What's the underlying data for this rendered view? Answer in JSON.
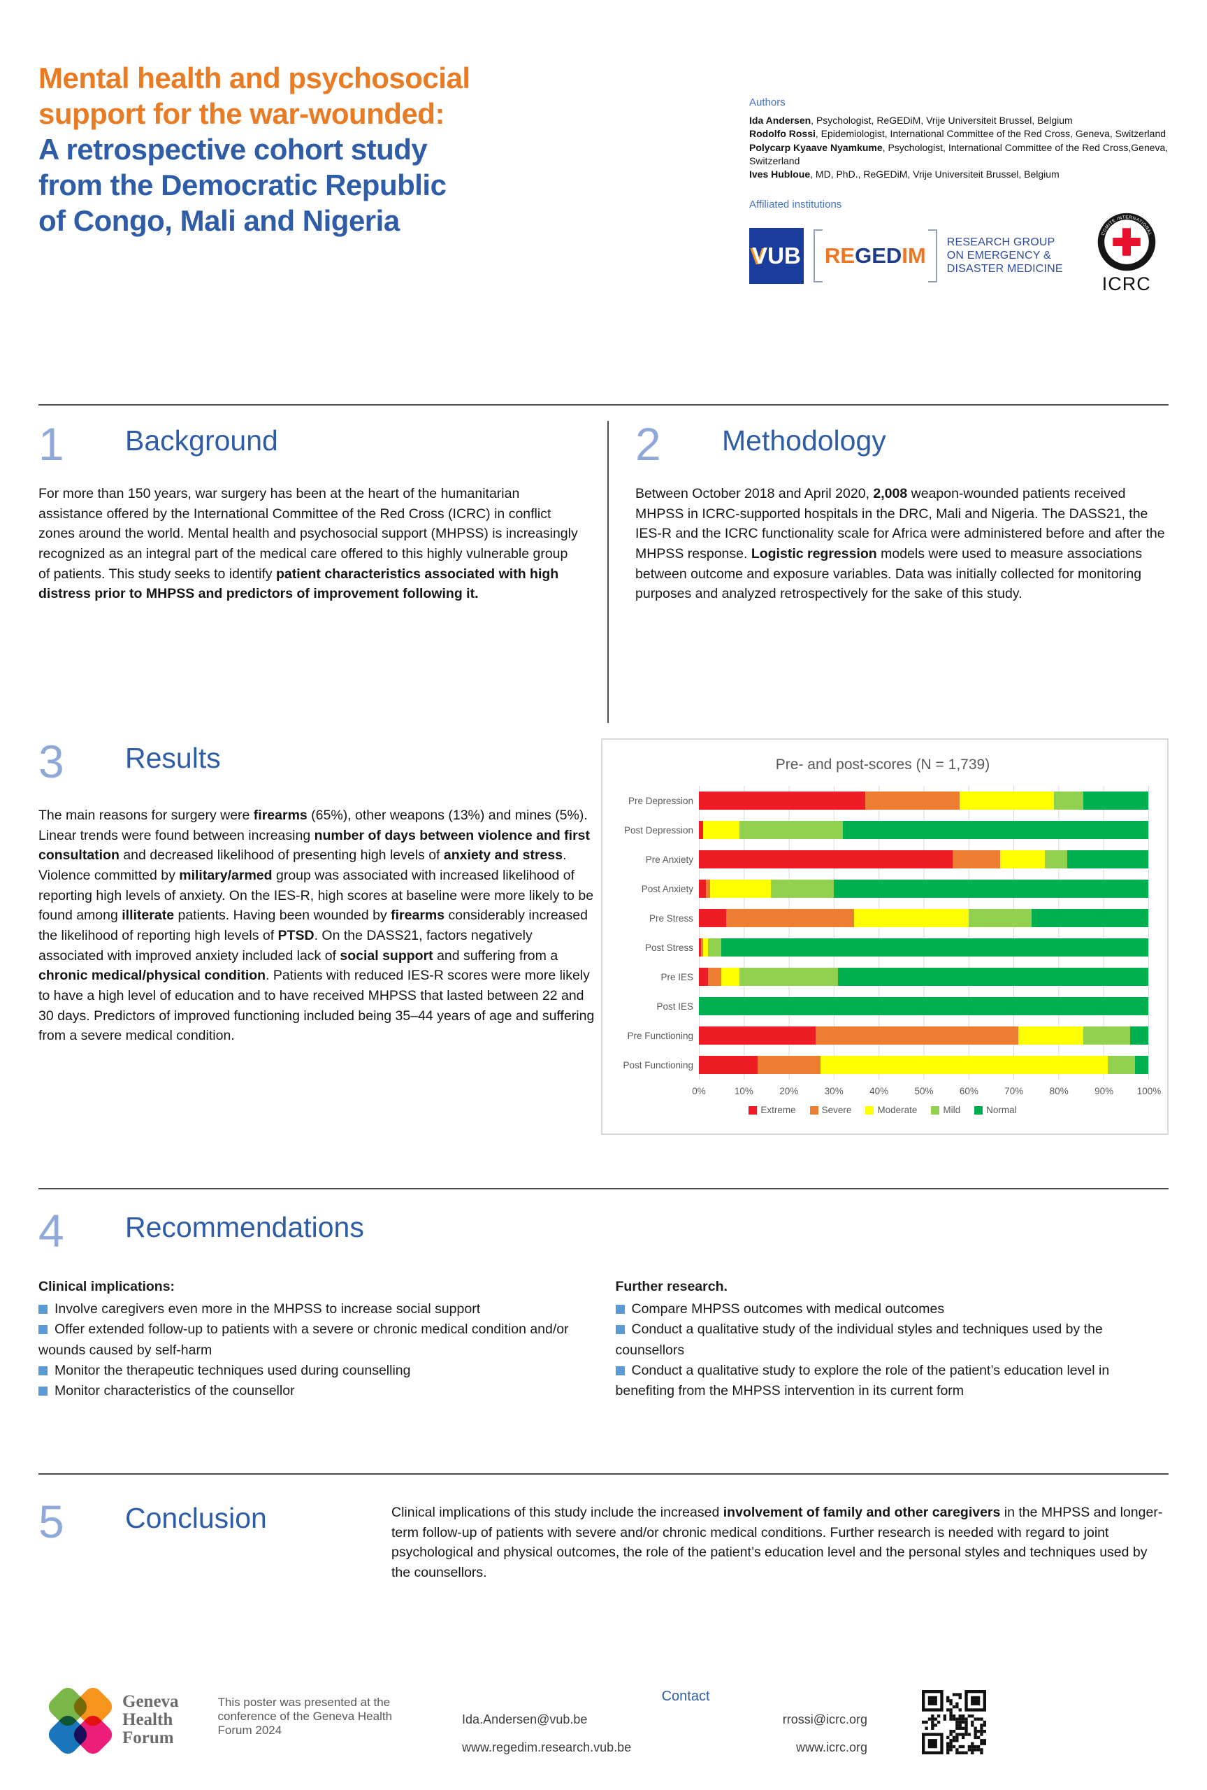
{
  "poster": {
    "title_orange": [
      "Mental health and psychosocial",
      "support for the war-wounded:"
    ],
    "title_blue": [
      "A retrospective cohort study",
      "from the Democratic Republic",
      "of Congo, Mali and Nigeria"
    ]
  },
  "authors": {
    "label": "Authors",
    "list": [
      {
        "name": "Ida Andersen",
        "rest": ", Psychologist, ReGEDiM, Vrije Universiteit Brussel, Belgium"
      },
      {
        "name": "Rodolfo Rossi",
        "rest": ", Epidemiologist, International Committee of the Red Cross, Geneva, Switzerland"
      },
      {
        "name": "Polycarp Kyaave Nyamkume",
        "rest": ", Psychologist, International Committee of the Red Cross,Geneva, Switzerland"
      },
      {
        "name": "Ives Hubloue",
        "rest": ", MD, PhD., ReGEDiM, Vrije Universiteit Brussel, Belgium"
      }
    ]
  },
  "affiliations": {
    "label": "Affiliated institutions",
    "vub_v": "V",
    "vub_ub": "UB",
    "regedim_part1": "RE",
    "regedim_part2": "GED",
    "regedim_part3": "IM",
    "research_group": [
      "RESEARCH GROUP",
      "ON EMERGENCY &",
      "DISASTER MEDICINE"
    ],
    "icrc_ring_top": "COMITE INTERNATIONAL",
    "icrc_ring_bottom": "GENEVE",
    "icrc_wordmark": "ICRC"
  },
  "sections": {
    "background": {
      "number": "1",
      "title": "Background",
      "body": [
        {
          "t": "For more than 150 years, war surgery has been at the heart of the humanitarian assistance offered by the International Committee of the Red Cross (ICRC) in conflict zones around the world. Mental health and psychosocial support (MHPSS) is increasingly recognized as an integral part of the medical care offered to this highly vulnerable group of patients. This study seeks to identify "
        },
        {
          "t": "patient characteristics associated with high distress prior to MHPSS and predictors of improvement following it.",
          "b": true
        }
      ]
    },
    "methodology": {
      "number": "2",
      "title": "Methodology",
      "body": [
        {
          "t": "Between October 2018 and April 2020, "
        },
        {
          "t": "2,008",
          "b": true
        },
        {
          "t": " weapon-wounded patients received MHPSS in ICRC-supported hospitals in the DRC, Mali and Nigeria. The DASS21, the IES-R and the ICRC functionality scale for Africa were administered before and after the MHPSS response. "
        },
        {
          "t": "Logistic regression",
          "b": true
        },
        {
          "t": " models were used to measure associations between outcome and exposure variables. Data was initially collected for monitoring purposes and analyzed retrospectively for the sake of this study."
        }
      ]
    },
    "results": {
      "number": "3",
      "title": "Results",
      "body": [
        {
          "t": "The main reasons for surgery were "
        },
        {
          "t": "firearms",
          "b": true
        },
        {
          "t": " (65%), other weapons (13%) and mines (5%). Linear trends were found between increasing "
        },
        {
          "t": "number of days between violence and first consultation",
          "b": true
        },
        {
          "t": " and decreased likelihood of presenting high levels of "
        },
        {
          "t": "anxiety and stress",
          "b": true
        },
        {
          "t": ". Violence committed by "
        },
        {
          "t": "military/armed",
          "b": true
        },
        {
          "t": " group was associated with increased likelihood of reporting high levels of anxiety. On the IES-R, high scores at baseline were more likely to be found among "
        },
        {
          "t": "illiterate",
          "b": true
        },
        {
          "t": " patients. Having been wounded by "
        },
        {
          "t": "firearms",
          "b": true
        },
        {
          "t": " considerably increased the likelihood of reporting high levels of "
        },
        {
          "t": "PTSD",
          "b": true
        },
        {
          "t": ". On the DASS21, factors negatively associated with improved anxiety included lack of "
        },
        {
          "t": "social support",
          "b": true
        },
        {
          "t": " and suffering from a "
        },
        {
          "t": "chronic medical/physical condition",
          "b": true
        },
        {
          "t": ". Patients with reduced IES-R scores were more likely to have a high level of education and to have received MHPSS that lasted between 22 and 30 days. Predictors of improved functioning included being 35–44 years of age and suffering from a severe medical condition."
        }
      ]
    },
    "recommendations": {
      "number": "4",
      "title": "Recommendations",
      "clinical": {
        "heading": "Clinical implications:",
        "items": [
          "Involve caregivers even more in the MHPSS to increase social support",
          "Offer extended follow-up to patients with a severe or chronic medical condition and/or wounds caused by self-harm",
          "Monitor the therapeutic techniques used during counselling",
          "Monitor characteristics of the counsellor"
        ]
      },
      "further": {
        "heading": "Further research.",
        "items": [
          "Compare MHPSS outcomes with medical outcomes",
          "Conduct a qualitative study of the individual styles and techniques used by the counsellors",
          "Conduct a qualitative study to explore the role of the patient’s education level in benefiting from the MHPSS intervention in its current form"
        ]
      }
    },
    "conclusion": {
      "number": "5",
      "title": "Conclusion",
      "body": [
        {
          "t": "Clinical implications of this study include the increased "
        },
        {
          "t": "involvement of family and other caregivers",
          "b": true
        },
        {
          "t": " in the MHPSS and longer-term follow-up of patients with severe and/or chronic medical conditions. Further research is needed with regard to joint psychological and physical outcomes, the role of the patient’s education level and the personal styles and techniques used by the counsellors."
        }
      ]
    }
  },
  "chart_data": {
    "type": "bar",
    "stacked": true,
    "orientation": "horizontal",
    "title": "Pre- and post-scores (N = 1,739)",
    "categories": [
      "Pre Depression",
      "Post Depression",
      "Pre Anxiety",
      "Post Anxiety",
      "Pre Stress",
      "Post Stress",
      "Pre IES",
      "Post IES",
      "Pre Functioning",
      "Post Functioning"
    ],
    "legend": [
      "Extreme",
      "Severe",
      "Moderate",
      "Mild",
      "Normal"
    ],
    "colors": [
      "#EE1C25",
      "#ED7D31",
      "#FFFF00",
      "#92D050",
      "#00B050"
    ],
    "series": [
      {
        "name": "Extreme",
        "values": [
          37,
          1,
          56.5,
          1.5,
          6,
          0.5,
          2,
          0,
          26,
          13
        ]
      },
      {
        "name": "Severe",
        "values": [
          21,
          0,
          10.5,
          1,
          28.5,
          0.5,
          3,
          0,
          45,
          14
        ]
      },
      {
        "name": "Moderate",
        "values": [
          21,
          8,
          10,
          13.5,
          25.5,
          1,
          4,
          0,
          14.5,
          64
        ]
      },
      {
        "name": "Mild",
        "values": [
          6.5,
          23,
          5,
          14,
          14,
          3,
          22,
          0,
          10.5,
          6
        ]
      },
      {
        "name": "Normal",
        "values": [
          14.5,
          68,
          18,
          70,
          26,
          95,
          69,
          100,
          4,
          3
        ]
      }
    ],
    "x_ticks": [
      "0%",
      "10%",
      "20%",
      "30%",
      "40%",
      "50%",
      "60%",
      "70%",
      "80%",
      "90%",
      "100%"
    ],
    "xlim": [
      0,
      100
    ],
    "grid": true,
    "legend_position": "bottom"
  },
  "footer": {
    "ghf_wordmark": [
      "Geneva",
      "Health",
      "Forum"
    ],
    "presented": [
      "This poster was presented at the",
      "conference of the Geneva Health",
      "Forum 2024"
    ],
    "contact_label": "Contact",
    "contact_left": [
      "Ida.Andersen@vub.be",
      "www.regedim.research.vub.be"
    ],
    "contact_right": [
      "rrossi@icrc.org",
      "www.icrc.org"
    ]
  },
  "colors": {
    "title_orange": "#E87B23",
    "title_blue": "#2E5CA6",
    "section_number_blue": "#8FA8D8",
    "label_blue": "#4472C4",
    "bullet_blue": "#5B9BD5",
    "divider_gray": "#4d4d4d",
    "icrc_red": "#E8112D",
    "vub_blue": "#1A3C9C"
  }
}
